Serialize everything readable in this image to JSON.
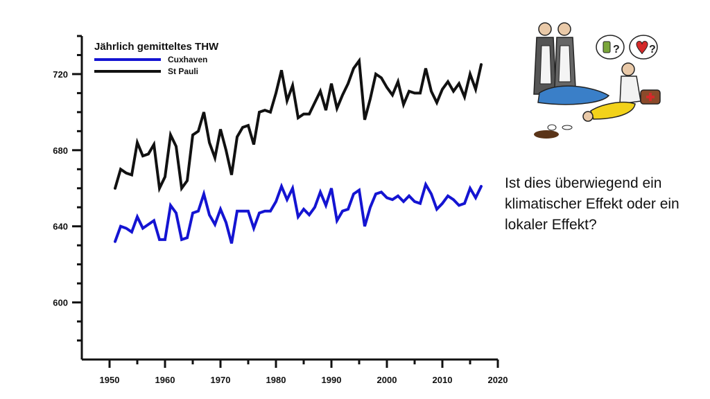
{
  "question": "Ist dies überwiegend ein klimatischer Effekt oder ein lokaler Effekt?",
  "cartoon": {
    "bottle_symbol": "?",
    "heart_symbol": "?"
  },
  "chart_data": {
    "type": "line",
    "title": "Jährlich gemitteltes THW",
    "xlabel": "",
    "ylabel": "",
    "xlim": [
      1945,
      2020
    ],
    "ylim": [
      570,
      740
    ],
    "xticks": [
      1950,
      1960,
      1970,
      1980,
      1990,
      2000,
      2010,
      2020
    ],
    "yticks": [
      600,
      640,
      680,
      720
    ],
    "legend_position": "top-left",
    "x": [
      1951,
      1952,
      1953,
      1954,
      1955,
      1956,
      1957,
      1958,
      1959,
      1960,
      1961,
      1962,
      1963,
      1964,
      1965,
      1966,
      1967,
      1968,
      1969,
      1970,
      1971,
      1972,
      1973,
      1974,
      1975,
      1976,
      1977,
      1978,
      1979,
      1980,
      1981,
      1982,
      1983,
      1984,
      1985,
      1986,
      1987,
      1988,
      1989,
      1990,
      1991,
      1992,
      1993,
      1994,
      1995,
      1996,
      1997,
      1998,
      1999,
      2000,
      2001,
      2002,
      2003,
      2004,
      2005,
      2006,
      2007,
      2008,
      2009,
      2010,
      2011,
      2012,
      2013,
      2014,
      2015,
      2016,
      2017
    ],
    "series": [
      {
        "name": "Cuxhaven",
        "color": "#1414d2",
        "values": [
          632,
          640,
          639,
          637,
          645,
          639,
          641,
          643,
          633,
          633,
          651,
          647,
          633,
          634,
          647,
          648,
          657,
          646,
          641,
          649,
          642,
          631,
          648,
          648,
          648,
          639,
          647,
          648,
          648,
          653,
          661,
          654,
          660,
          645,
          649,
          646,
          650,
          658,
          651,
          660,
          643,
          648,
          649,
          657,
          659,
          640,
          650,
          657,
          658,
          655,
          654,
          656,
          653,
          656,
          653,
          652,
          662,
          657,
          649,
          652,
          656,
          654,
          651,
          652,
          660,
          655,
          661
        ]
      },
      {
        "name": "St Pauli",
        "color": "#111111",
        "values": [
          660,
          670,
          668,
          667,
          684,
          677,
          678,
          683,
          660,
          666,
          688,
          682,
          660,
          664,
          688,
          690,
          700,
          684,
          676,
          691,
          680,
          667,
          687,
          692,
          693,
          683,
          700,
          701,
          700,
          710,
          722,
          706,
          714,
          697,
          699,
          699,
          705,
          711,
          701,
          715,
          702,
          709,
          715,
          723,
          727,
          696,
          707,
          720,
          718,
          713,
          709,
          716,
          704,
          711,
          710,
          710,
          723,
          711,
          705,
          712,
          716,
          711,
          715,
          708,
          720,
          712,
          725
        ]
      }
    ]
  }
}
